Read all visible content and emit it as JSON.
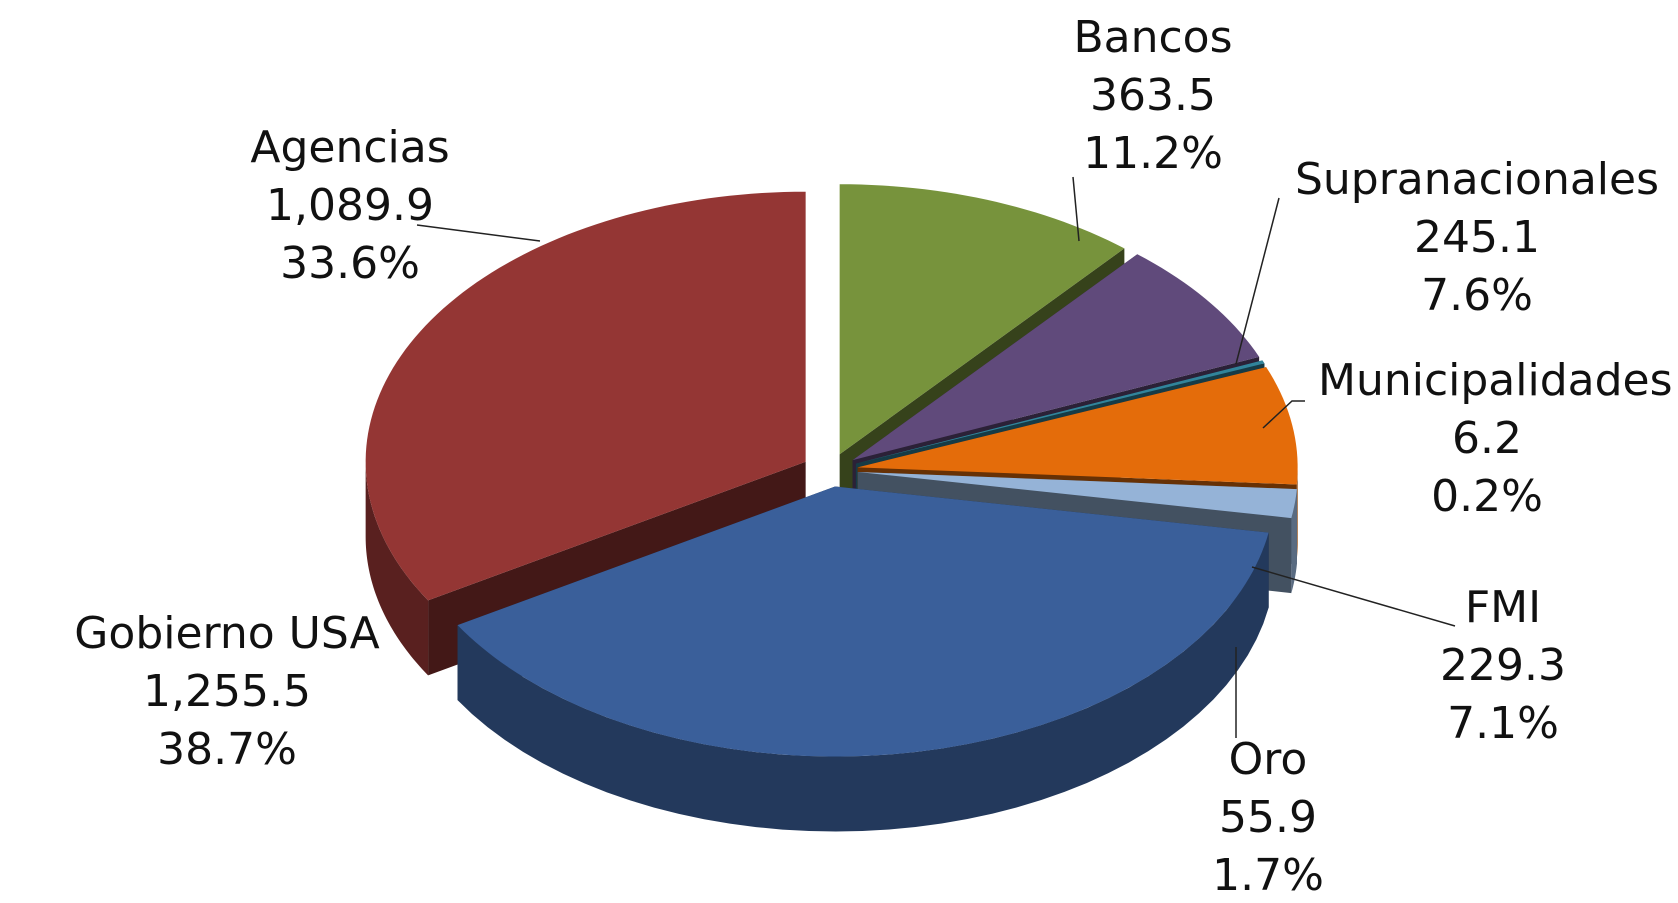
{
  "chart_data": {
    "type": "pie3d",
    "categories": [
      "Bancos",
      "Supranacionales",
      "Municipalidades",
      "FMI",
      "Oro",
      "Gobierno USA",
      "Agencias"
    ],
    "values": [
      363.5,
      245.1,
      6.2,
      229.3,
      55.9,
      1255.5,
      1089.9
    ],
    "value_labels": [
      "363.5",
      "245.1",
      "6.2",
      "229.3",
      "55.9",
      "1,255.5",
      "1,089.9"
    ],
    "percent_labels": [
      "11.2%",
      "7.6%",
      "0.2%",
      "7.1%",
      "1.7%",
      "38.7%",
      "33.6%"
    ],
    "colors": [
      "#77933c",
      "#604a7b",
      "#31849b",
      "#e46c0a",
      "#95b3d7",
      "#3a5f9a",
      "#943634"
    ]
  }
}
